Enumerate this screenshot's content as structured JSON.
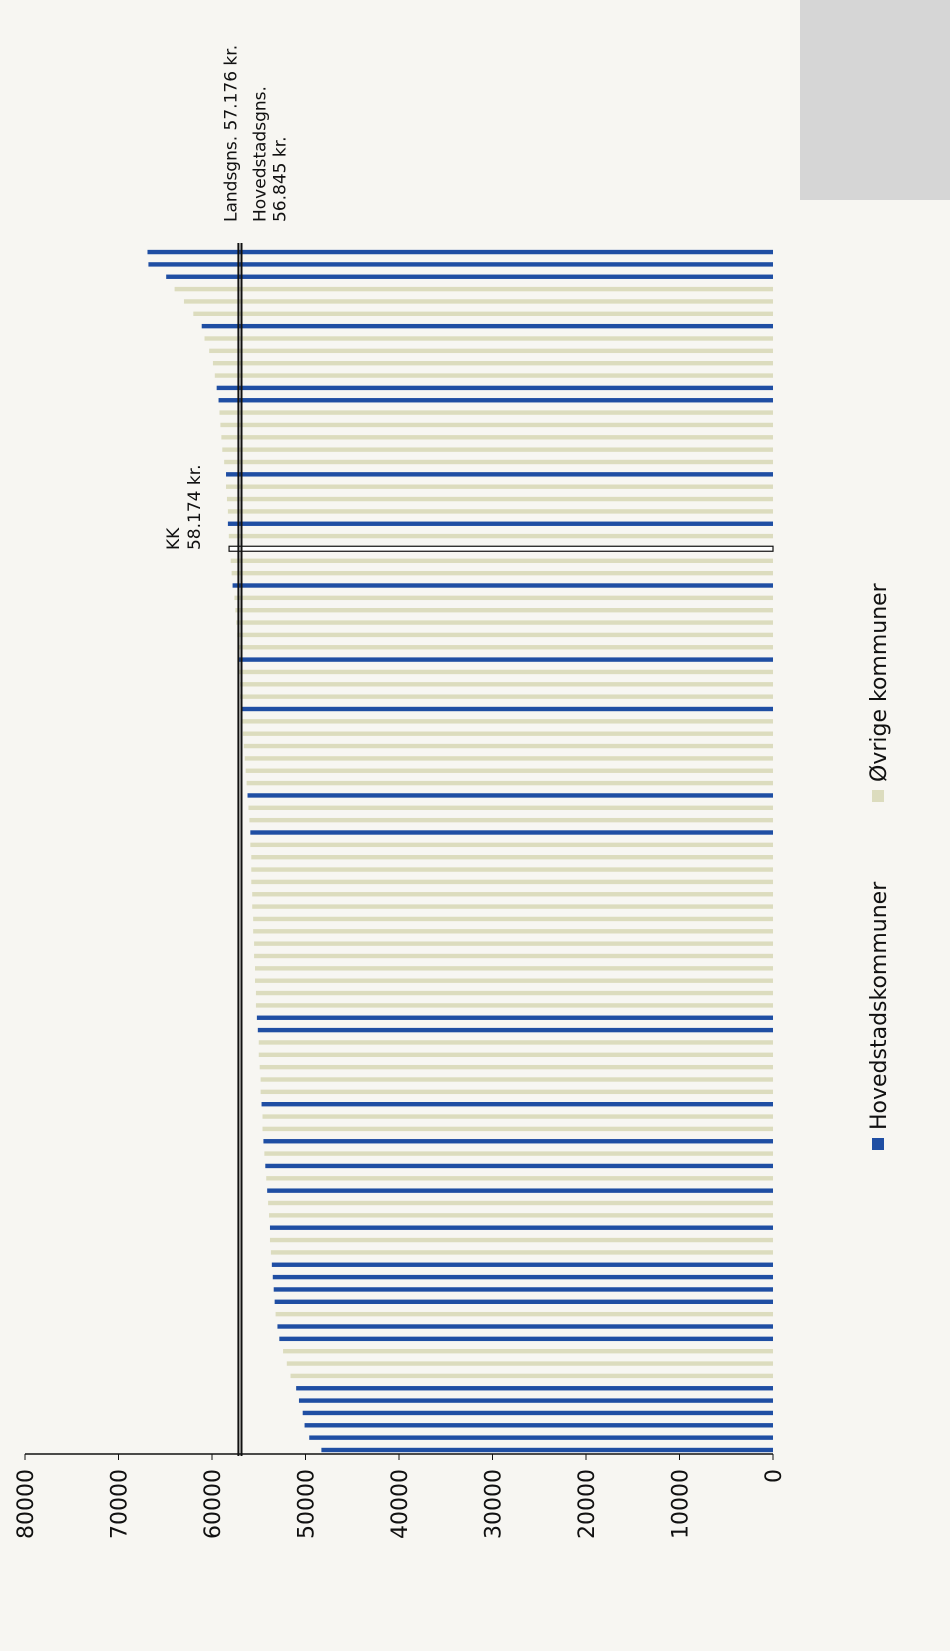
{
  "chart_data": {
    "type": "bar",
    "orientation": "rotated",
    "series": [
      {
        "name": "Hovedstadskommuner",
        "color": "#1f4ea3",
        "values": [
          48300,
          49600,
          50100,
          50300,
          50700,
          51000,
          null,
          null,
          null,
          52800,
          53000,
          null,
          53300,
          53400,
          53500,
          53600,
          null,
          null,
          53800,
          null,
          null,
          54100,
          null,
          54300,
          null,
          54500,
          null,
          null,
          54700,
          null,
          null,
          null,
          null,
          null,
          55100,
          55200,
          null,
          null,
          null,
          null,
          null,
          null,
          null,
          null,
          null,
          null,
          null,
          null,
          null,
          null,
          55900,
          null,
          null,
          56200,
          null,
          null,
          null,
          null,
          null,
          null,
          56900,
          null,
          null,
          null,
          57100,
          null,
          null,
          null,
          null,
          null,
          57800,
          null,
          null,
          58174,
          null,
          58300,
          null,
          null,
          null,
          58500,
          null,
          null,
          null,
          null,
          null,
          59300,
          59500,
          null,
          null,
          null,
          null,
          61100,
          null,
          null,
          null,
          64900,
          66800,
          66900
        ]
      },
      {
        "name": "Øvrige kommuner",
        "color": "#dcdcbe",
        "values": [
          null,
          null,
          null,
          null,
          null,
          null,
          51600,
          52000,
          52400,
          null,
          null,
          53200,
          null,
          null,
          null,
          null,
          53700,
          53800,
          null,
          53900,
          54000,
          null,
          54200,
          null,
          54400,
          null,
          54600,
          54600,
          null,
          54800,
          54800,
          54900,
          55000,
          55000,
          null,
          null,
          55300,
          55300,
          55400,
          55400,
          55500,
          55500,
          55600,
          55600,
          55700,
          55700,
          55800,
          55800,
          55800,
          55900,
          null,
          56000,
          56100,
          null,
          56300,
          56400,
          56500,
          56600,
          56700,
          56800,
          null,
          57000,
          57000,
          57100,
          null,
          57200,
          57300,
          57400,
          57500,
          57600,
          null,
          57900,
          58000,
          null,
          58200,
          null,
          58300,
          58400,
          58500,
          null,
          58700,
          58900,
          59000,
          59100,
          59200,
          null,
          null,
          59700,
          59900,
          60300,
          60800,
          null,
          62000,
          63000,
          64000,
          null,
          null,
          null
        ]
      }
    ],
    "ylim": [
      0,
      80000
    ],
    "yticks": [
      0,
      10000,
      20000,
      30000,
      40000,
      50000,
      60000,
      70000,
      80000
    ],
    "reference_lines": [
      {
        "lines": [
          "Landsgns. 57.176 kr."
        ],
        "value": 57176
      },
      {
        "lines": [
          "Hovedstadsgns.",
          "56.845 kr."
        ],
        "value": 56845
      }
    ],
    "highlight": {
      "lines": [
        "KK",
        "58.174 kr."
      ],
      "value": 58174
    }
  }
}
